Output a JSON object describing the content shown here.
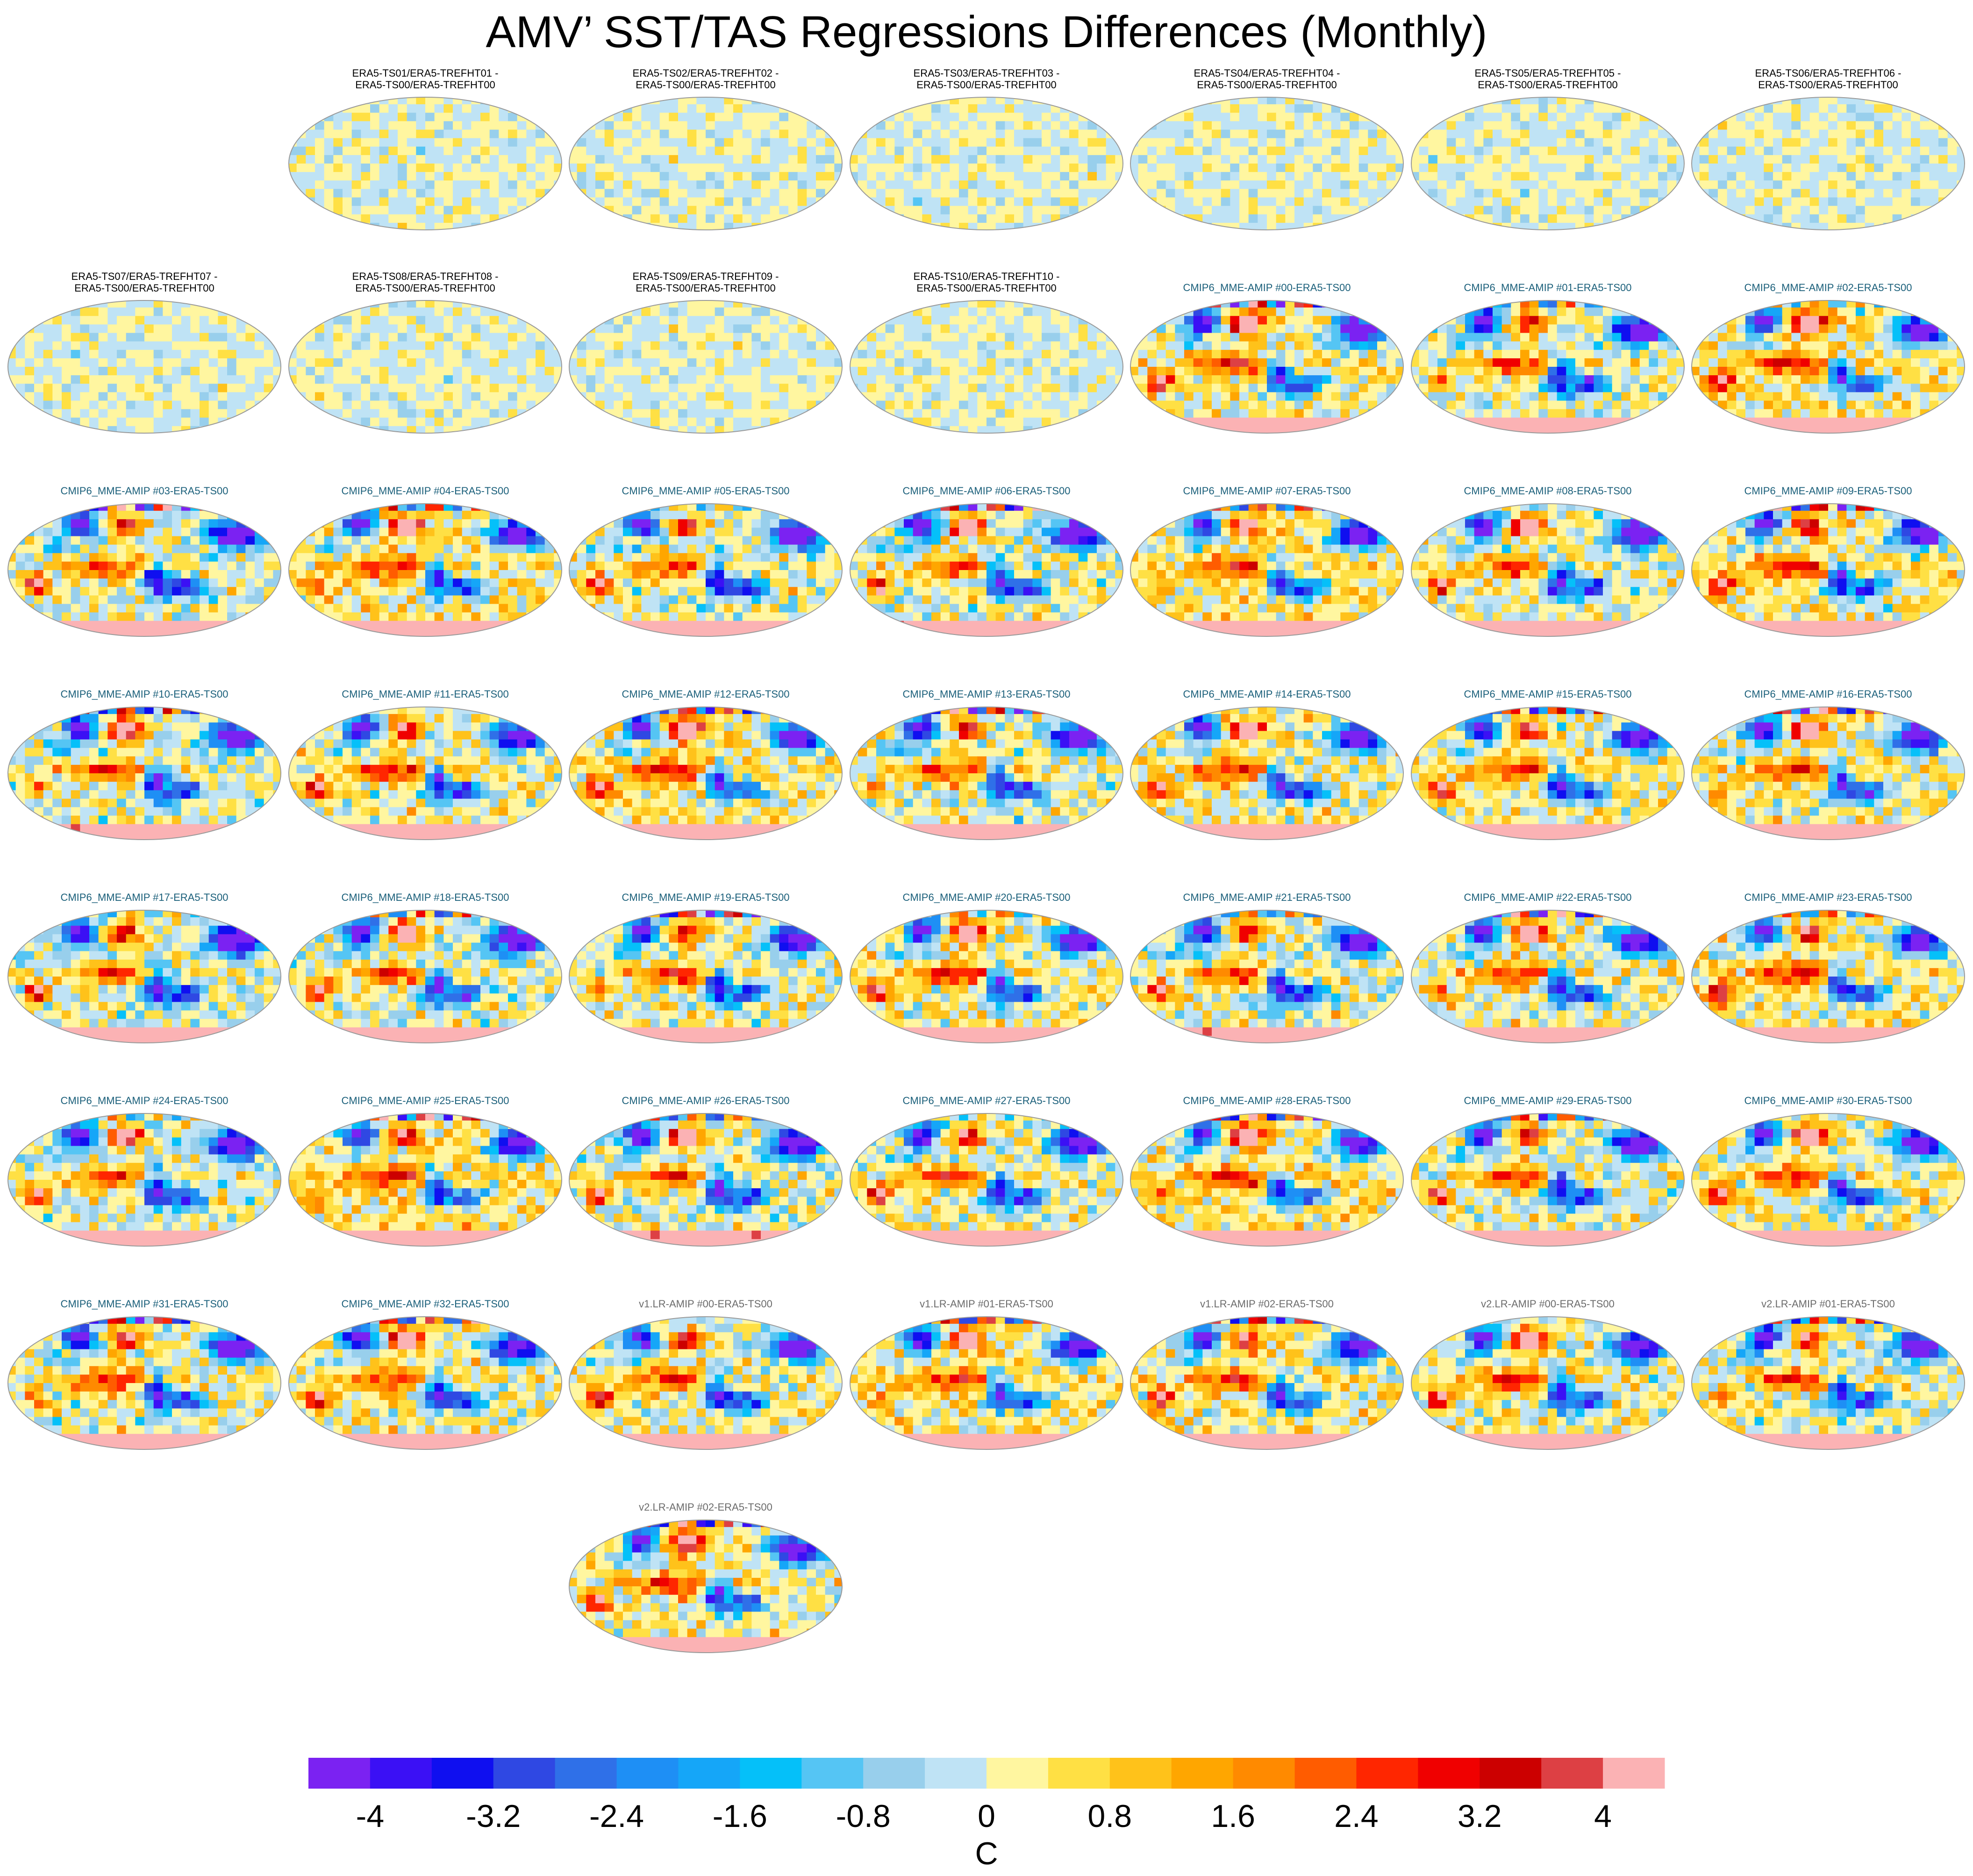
{
  "title": "AMV’ SST/TAS Regressions Differences (Monthly)",
  "chart_data": {
    "type": "heatmap",
    "description_unit": "C",
    "panels": [
      {
        "title": "ERA5-TS01/ERA5-TREFHT01 -\nERA5-TS00/ERA5-TREFHT00",
        "group": "era"
      },
      {
        "title": "ERA5-TS02/ERA5-TREFHT02 -\nERA5-TS00/ERA5-TREFHT00",
        "group": "era"
      },
      {
        "title": "ERA5-TS03/ERA5-TREFHT03 -\nERA5-TS00/ERA5-TREFHT00",
        "group": "era"
      },
      {
        "title": "ERA5-TS04/ERA5-TREFHT04 -\nERA5-TS00/ERA5-TREFHT00",
        "group": "era"
      },
      {
        "title": "ERA5-TS05/ERA5-TREFHT05 -\nERA5-TS00/ERA5-TREFHT00",
        "group": "era"
      },
      {
        "title": "ERA5-TS06/ERA5-TREFHT06 -\nERA5-TS00/ERA5-TREFHT00",
        "group": "era"
      },
      {
        "title": "ERA5-TS07/ERA5-TREFHT07 -\nERA5-TS00/ERA5-TREFHT00",
        "group": "era"
      },
      {
        "title": "ERA5-TS08/ERA5-TREFHT08 -\nERA5-TS00/ERA5-TREFHT00",
        "group": "era"
      },
      {
        "title": "ERA5-TS09/ERA5-TREFHT09 -\nERA5-TS00/ERA5-TREFHT00",
        "group": "era"
      },
      {
        "title": "ERA5-TS10/ERA5-TREFHT10 -\nERA5-TS00/ERA5-TREFHT00",
        "group": "era"
      },
      {
        "title": "CMIP6_MME-AMIP  #00-ERA5-TS00",
        "group": "cmip"
      },
      {
        "title": "CMIP6_MME-AMIP  #01-ERA5-TS00",
        "group": "cmip"
      },
      {
        "title": "CMIP6_MME-AMIP  #02-ERA5-TS00",
        "group": "cmip"
      },
      {
        "title": "CMIP6_MME-AMIP  #03-ERA5-TS00",
        "group": "cmip"
      },
      {
        "title": "CMIP6_MME-AMIP  #04-ERA5-TS00",
        "group": "cmip"
      },
      {
        "title": "CMIP6_MME-AMIP  #05-ERA5-TS00",
        "group": "cmip"
      },
      {
        "title": "CMIP6_MME-AMIP  #06-ERA5-TS00",
        "group": "cmip"
      },
      {
        "title": "CMIP6_MME-AMIP  #07-ERA5-TS00",
        "group": "cmip"
      },
      {
        "title": "CMIP6_MME-AMIP  #08-ERA5-TS00",
        "group": "cmip"
      },
      {
        "title": "CMIP6_MME-AMIP  #09-ERA5-TS00",
        "group": "cmip"
      },
      {
        "title": "CMIP6_MME-AMIP  #10-ERA5-TS00",
        "group": "cmip"
      },
      {
        "title": "CMIP6_MME-AMIP  #11-ERA5-TS00",
        "group": "cmip"
      },
      {
        "title": "CMIP6_MME-AMIP  #12-ERA5-TS00",
        "group": "cmip"
      },
      {
        "title": "CMIP6_MME-AMIP  #13-ERA5-TS00",
        "group": "cmip"
      },
      {
        "title": "CMIP6_MME-AMIP  #14-ERA5-TS00",
        "group": "cmip"
      },
      {
        "title": "CMIP6_MME-AMIP  #15-ERA5-TS00",
        "group": "cmip"
      },
      {
        "title": "CMIP6_MME-AMIP  #16-ERA5-TS00",
        "group": "cmip"
      },
      {
        "title": "CMIP6_MME-AMIP  #17-ERA5-TS00",
        "group": "cmip"
      },
      {
        "title": "CMIP6_MME-AMIP  #18-ERA5-TS00",
        "group": "cmip"
      },
      {
        "title": "CMIP6_MME-AMIP  #19-ERA5-TS00",
        "group": "cmip"
      },
      {
        "title": "CMIP6_MME-AMIP  #20-ERA5-TS00",
        "group": "cmip"
      },
      {
        "title": "CMIP6_MME-AMIP  #21-ERA5-TS00",
        "group": "cmip"
      },
      {
        "title": "CMIP6_MME-AMIP  #22-ERA5-TS00",
        "group": "cmip"
      },
      {
        "title": "CMIP6_MME-AMIP  #23-ERA5-TS00",
        "group": "cmip"
      },
      {
        "title": "CMIP6_MME-AMIP  #24-ERA5-TS00",
        "group": "cmip"
      },
      {
        "title": "CMIP6_MME-AMIP  #25-ERA5-TS00",
        "group": "cmip"
      },
      {
        "title": "CMIP6_MME-AMIP  #26-ERA5-TS00",
        "group": "cmip"
      },
      {
        "title": "CMIP6_MME-AMIP  #27-ERA5-TS00",
        "group": "cmip"
      },
      {
        "title": "CMIP6_MME-AMIP  #28-ERA5-TS00",
        "group": "cmip"
      },
      {
        "title": "CMIP6_MME-AMIP  #29-ERA5-TS00",
        "group": "cmip"
      },
      {
        "title": "CMIP6_MME-AMIP  #30-ERA5-TS00",
        "group": "cmip"
      },
      {
        "title": "CMIP6_MME-AMIP  #31-ERA5-TS00",
        "group": "cmip"
      },
      {
        "title": "CMIP6_MME-AMIP  #32-ERA5-TS00",
        "group": "cmip"
      },
      {
        "title": "v1.LR-AMIP  #00-ERA5-TS00",
        "group": "v"
      },
      {
        "title": "v1.LR-AMIP  #01-ERA5-TS00",
        "group": "v"
      },
      {
        "title": "v1.LR-AMIP  #02-ERA5-TS00",
        "group": "v"
      },
      {
        "title": "v2.LR-AMIP  #00-ERA5-TS00",
        "group": "v"
      },
      {
        "title": "v2.LR-AMIP  #01-ERA5-TS00",
        "group": "v"
      },
      {
        "title": "v2.LR-AMIP  #02-ERA5-TS00",
        "group": "v"
      }
    ],
    "colorbar": {
      "label": "C",
      "range": [
        -4.4,
        4.4
      ],
      "bounds": [
        -4.4,
        -4.0,
        -3.6,
        -3.2,
        -2.8,
        -2.4,
        -2.0,
        -1.6,
        -1.2,
        -0.8,
        -0.4,
        0.0,
        0.4,
        0.8,
        1.2,
        1.6,
        2.0,
        2.4,
        2.8,
        3.2,
        3.6,
        4.0,
        4.4
      ],
      "colors": [
        "#7b22f2",
        "#3b10f5",
        "#0f0ff0",
        "#2f48e3",
        "#2f70e8",
        "#1e8ff5",
        "#15a6f8",
        "#05c0f9",
        "#55c5f4",
        "#98cfec",
        "#bfe3f5",
        "#fff6a0",
        "#ffe044",
        "#ffc21a",
        "#ffa600",
        "#ff8a00",
        "#ff5c00",
        "#ff2600",
        "#f00000",
        "#cc0000",
        "#dd4044",
        "#fbb2b4"
      ],
      "tick_values": [
        -4,
        -3.2,
        -2.4,
        -1.6,
        -0.8,
        0,
        0.8,
        1.6,
        2.4,
        3.2,
        4
      ],
      "tick_labels": [
        "-4",
        "-3.2",
        "-2.4",
        "-1.6",
        "-0.8",
        "0",
        "0.8",
        "1.6",
        "2.4",
        "3.2",
        "4"
      ]
    }
  }
}
